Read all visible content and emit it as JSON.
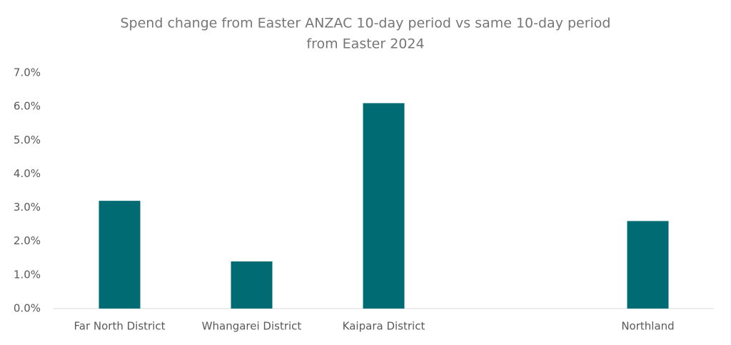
{
  "chart_data": {
    "type": "bar",
    "title": [
      "Spend change from Easter ANZAC 10-day period vs same 10-day period",
      "from Easter 2024"
    ],
    "categories": [
      "Far North District",
      "Whangarei District",
      "Kaipara District",
      null,
      "Northland"
    ],
    "values": [
      3.2,
      1.4,
      6.1,
      null,
      2.6
    ],
    "color": "#006b73",
    "ylim": [
      0,
      7
    ],
    "yticks": [
      {
        "value": 0,
        "label": "0.0%"
      },
      {
        "value": 1,
        "label": "1.0%"
      },
      {
        "value": 2,
        "label": "2.0%"
      },
      {
        "value": 3,
        "label": "3.0%"
      },
      {
        "value": 4,
        "label": "4.0%"
      },
      {
        "value": 5,
        "label": "5.0%"
      },
      {
        "value": 6,
        "label": "6.0%"
      },
      {
        "value": 7,
        "label": "7.0%"
      }
    ],
    "grid": false
  }
}
